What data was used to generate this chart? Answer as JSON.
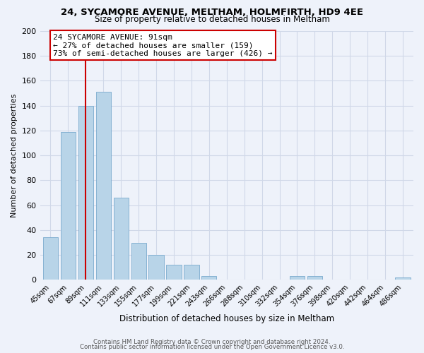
{
  "title1": "24, SYCAMORE AVENUE, MELTHAM, HOLMFIRTH, HD9 4EE",
  "title2": "Size of property relative to detached houses in Meltham",
  "xlabel": "Distribution of detached houses by size in Meltham",
  "ylabel": "Number of detached properties",
  "bar_labels": [
    "45sqm",
    "67sqm",
    "89sqm",
    "111sqm",
    "133sqm",
    "155sqm",
    "177sqm",
    "199sqm",
    "221sqm",
    "243sqm",
    "266sqm",
    "288sqm",
    "310sqm",
    "332sqm",
    "354sqm",
    "376sqm",
    "398sqm",
    "420sqm",
    "442sqm",
    "464sqm",
    "486sqm"
  ],
  "bar_values": [
    34,
    119,
    140,
    151,
    66,
    30,
    20,
    12,
    12,
    3,
    0,
    0,
    0,
    0,
    3,
    3,
    0,
    0,
    0,
    0,
    2
  ],
  "bar_color": "#b8d4e8",
  "bar_edge_color": "#7aaace",
  "vline_x_index": 2,
  "vline_color": "#cc0000",
  "annotation_line1": "24 SYCAMORE AVENUE: 91sqm",
  "annotation_line2": "← 27% of detached houses are smaller (159)",
  "annotation_line3": "73% of semi-detached houses are larger (426) →",
  "annotation_box_color": "#ffffff",
  "annotation_box_edge": "#cc0000",
  "ylim": [
    0,
    200
  ],
  "yticks": [
    0,
    20,
    40,
    60,
    80,
    100,
    120,
    140,
    160,
    180,
    200
  ],
  "grid_color": "#d0d8e8",
  "footer1": "Contains HM Land Registry data © Crown copyright and database right 2024.",
  "footer2": "Contains public sector information licensed under the Open Government Licence v3.0.",
  "bg_color": "#eef2fa"
}
